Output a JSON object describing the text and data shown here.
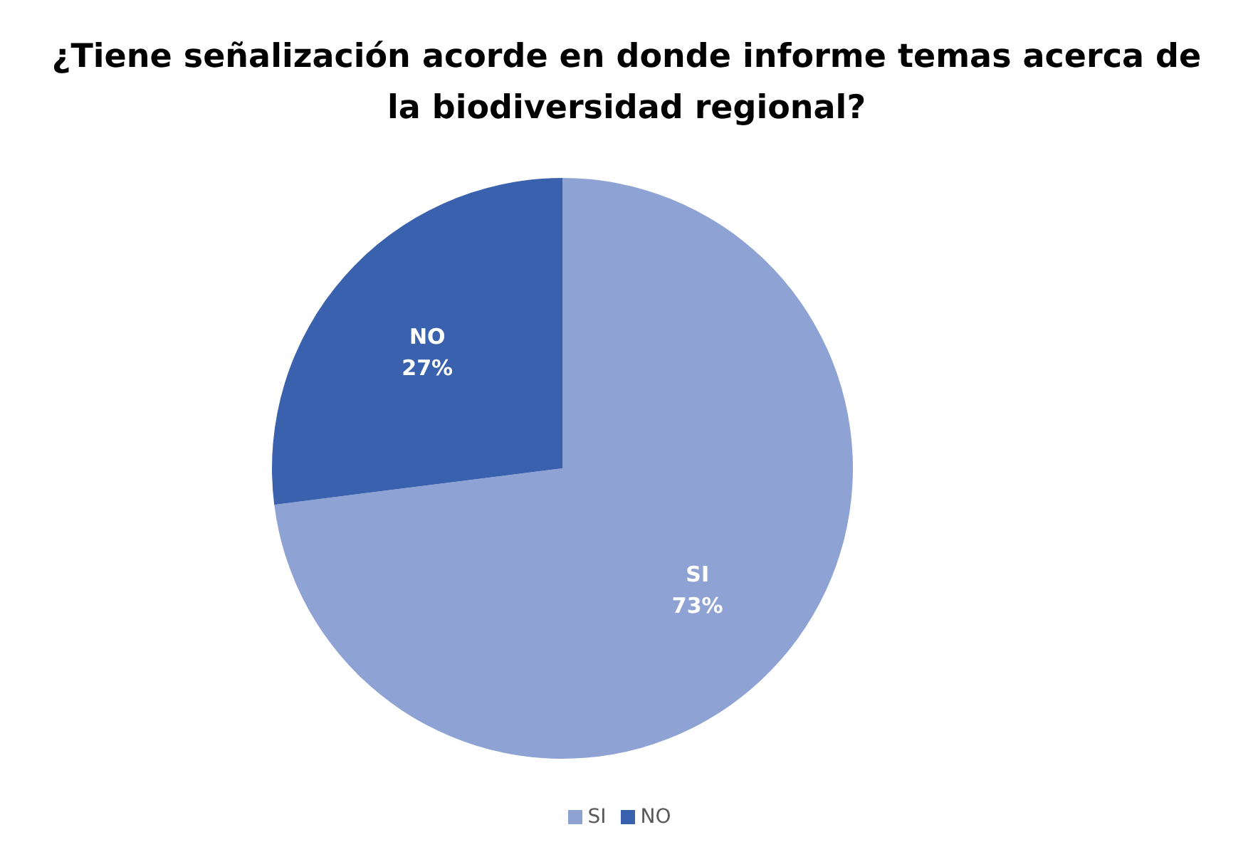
{
  "chart_data": {
    "type": "pie",
    "title": "¿Tiene señalización acorde en donde informe temas acerca de la biodiversidad regional?",
    "categories": [
      "SI",
      "NO"
    ],
    "values": [
      73,
      27
    ],
    "value_labels": [
      "73%",
      "27%"
    ],
    "colors": [
      "#8fa2d4",
      "#3a61ad"
    ],
    "legend": "bottom"
  }
}
